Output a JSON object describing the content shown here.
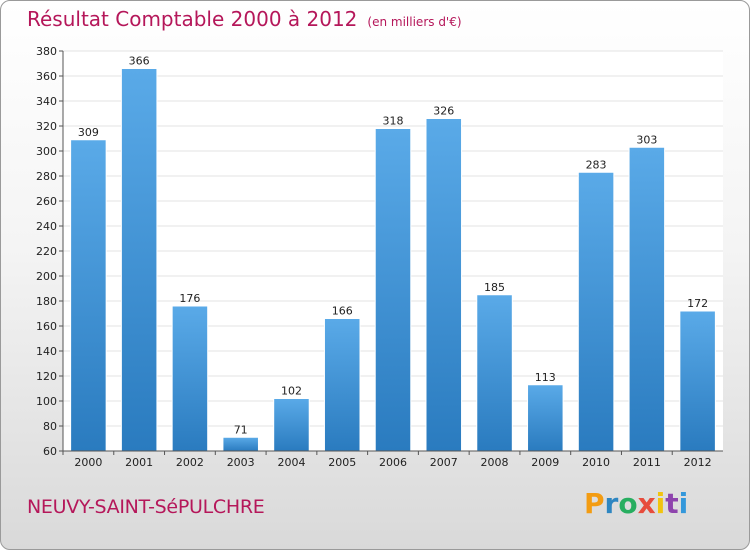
{
  "header": {
    "title": "Résultat Comptable 2000 à 2012",
    "subtitle": "(en milliers d'€)"
  },
  "footer": {
    "commune": "NEUVY-SAINT-SéPULCHRE",
    "logo": {
      "letters": [
        "P",
        "r",
        "o",
        "x",
        "i",
        "t",
        "i"
      ],
      "colors": [
        "#f39c12",
        "#2e86c1",
        "#27ae60",
        "#e74c3c",
        "#f1c40f",
        "#8e44ad",
        "#3498db"
      ]
    }
  },
  "chart_data": {
    "type": "bar",
    "categories": [
      "2000",
      "2001",
      "2002",
      "2003",
      "2004",
      "2005",
      "2006",
      "2007",
      "2008",
      "2009",
      "2010",
      "2011",
      "2012"
    ],
    "values": [
      309,
      366,
      176,
      71,
      102,
      166,
      318,
      326,
      185,
      113,
      283,
      303,
      172
    ],
    "ylim": [
      60,
      380
    ],
    "yticks": [
      60,
      80,
      100,
      120,
      140,
      160,
      180,
      200,
      220,
      240,
      260,
      280,
      300,
      320,
      340,
      360,
      380
    ],
    "grid": true,
    "bar_color_top": "#5aaae8",
    "bar_color_bottom": "#2a7bbf"
  }
}
